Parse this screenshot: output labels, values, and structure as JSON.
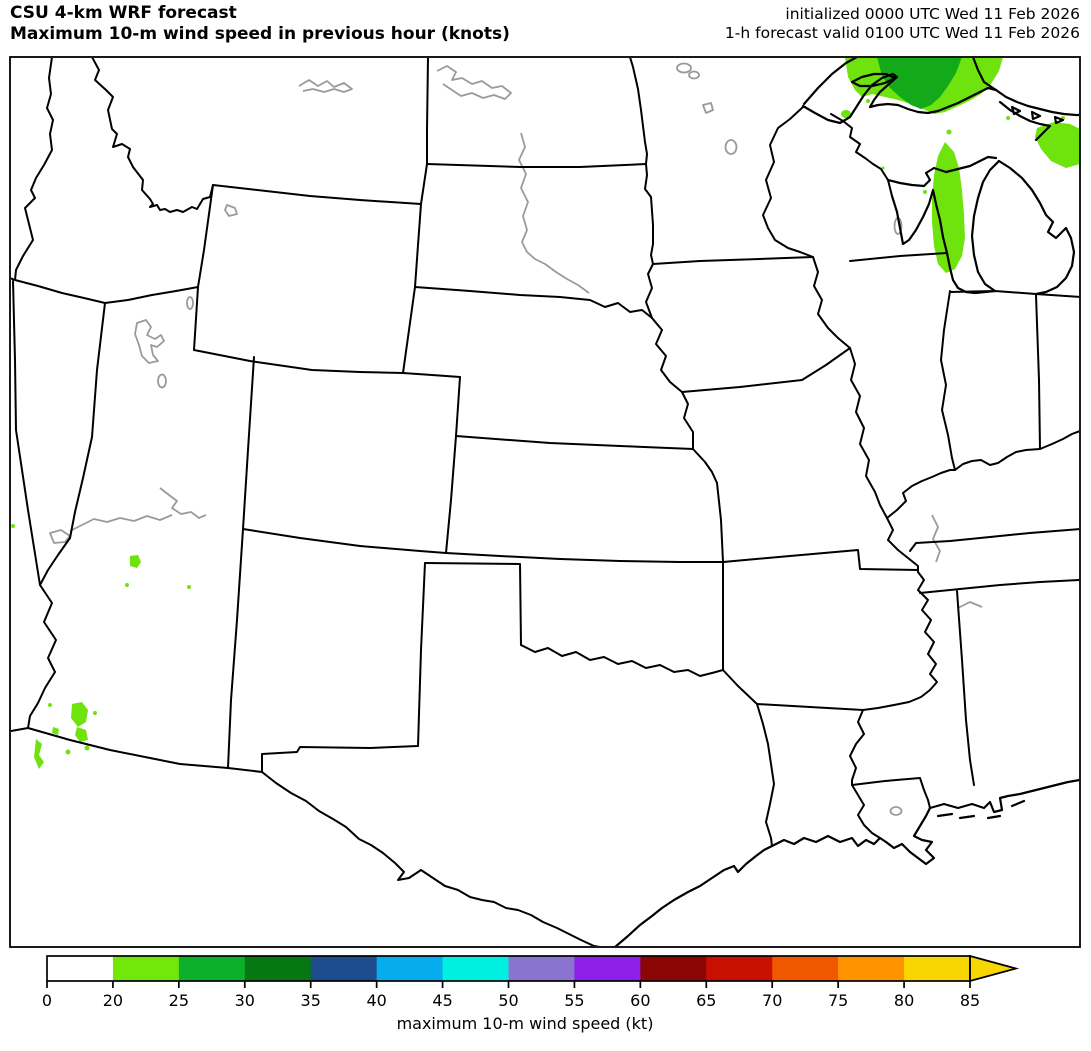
{
  "header": {
    "title_line1": "CSU 4-km WRF forecast",
    "title_line2": "Maximum 10-m wind speed in previous hour (knots)",
    "init_line": "initialized 0000 UTC Wed 11 Feb 2026",
    "valid_line": "1-h forecast valid 0100 UTC Wed 11 Feb 2026"
  },
  "colorbar": {
    "label": "maximum 10-m wind speed (kt)",
    "tick_labels": [
      "0",
      "20",
      "25",
      "30",
      "35",
      "40",
      "45",
      "50",
      "55",
      "60",
      "65",
      "70",
      "75",
      "80",
      "85"
    ],
    "bin_colors": [
      "#ffffff",
      "#73e60a",
      "#0cb02a",
      "#067711",
      "#1c4c8c",
      "#06acec",
      "#00efe1",
      "#8b74d0",
      "#8e1fe8",
      "#8b0505",
      "#c81000",
      "#f05800",
      "#ff9400",
      "#f8d602"
    ],
    "arrow_color": "#f8d602",
    "outline_color": "#000000",
    "tick_font_px": 16
  },
  "map": {
    "colors": {
      "frame": "#000000",
      "border": "#000000",
      "water_outline": "#9a9a9a",
      "shade_20_25": "#6fe30d",
      "shade_25_30": "#12aa18",
      "land": "#ffffff"
    }
  },
  "chart_data": {
    "type": "map",
    "title": "CSU 4-km WRF forecast — Maximum 10-m wind speed in previous hour (knots)",
    "initialized": "0000 UTC Wed 11 Feb 2026",
    "valid": "0100 UTC Wed 11 Feb 2026",
    "units": "kt",
    "colorbar_bins": [
      [
        0,
        20
      ],
      [
        20,
        25
      ],
      [
        25,
        30
      ],
      [
        30,
        35
      ],
      [
        35,
        40
      ],
      [
        40,
        45
      ],
      [
        45,
        50
      ],
      [
        50,
        55
      ],
      [
        55,
        60
      ],
      [
        60,
        65
      ],
      [
        65,
        70
      ],
      [
        70,
        75
      ],
      [
        75,
        80
      ],
      [
        80,
        85
      ]
    ],
    "colorbar_extends_above": 85,
    "shaded_regions": [
      {
        "area": "Lake Superior (eastern half)",
        "wind_kt": "20-30",
        "note": "core of 25-30 kt surrounded by 20-25 kt"
      },
      {
        "area": "Lake Michigan (central/eastern)",
        "wind_kt": "20-25"
      },
      {
        "area": "northern Lake Huron / Ontario shore",
        "wind_kt": "20-25"
      },
      {
        "area": "northwest Arizona (small spots)",
        "wind_kt": "20-25"
      },
      {
        "area": "lower Colorado River / SE California (small spots)",
        "wind_kt": "20-25"
      }
    ],
    "domain": "central United States (Rockies to Appalachians, Canada border to Gulf of Mexico)"
  }
}
